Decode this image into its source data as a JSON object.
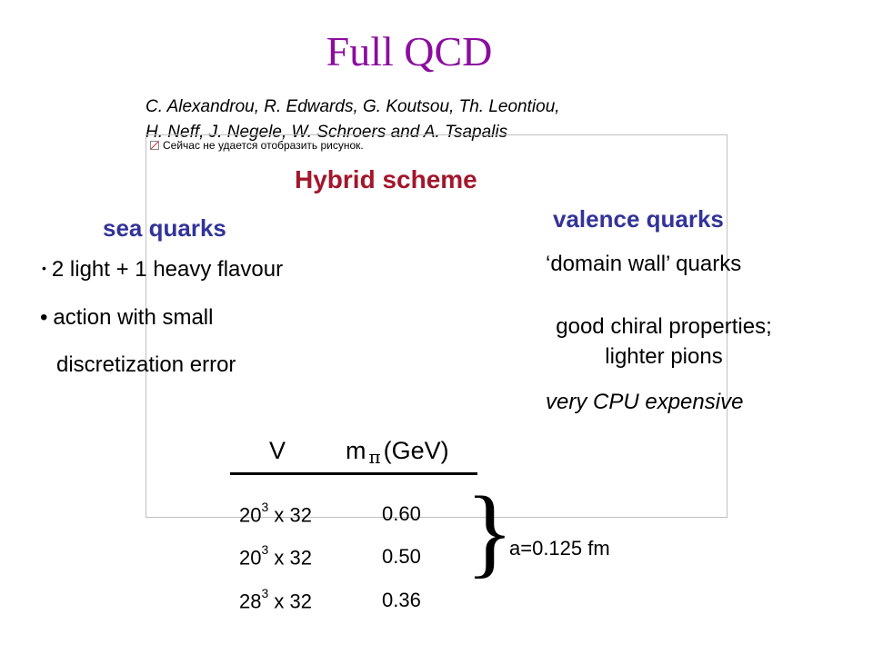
{
  "title": "Full QCD",
  "authors": [
    "C. Alexandrou, R. Edwards, G. Koutsou, Th. Leontiou,",
    "H. Neff, J. Negele, W. Schroers and A. Tsapalis"
  ],
  "image_placeholder": "Сейчас не удается отобразить рисунок.",
  "hybrid_title": "Hybrid scheme",
  "sea": {
    "heading": "sea quarks",
    "bullet1": "2 light + 1 heavy flavour",
    "bullet2": "action with small",
    "bullet2_cont": "discretization error"
  },
  "valence": {
    "heading": "valence quarks",
    "line1": "‘domain wall’ quarks",
    "line2a": "good chiral properties;",
    "line2b": "lighter pions",
    "line3": "very CPU expensive"
  },
  "table": {
    "header_v": "V",
    "header_m": "m",
    "header_m_sub": "π",
    "header_m_unit": "(GeV)",
    "rows": [
      {
        "base": "20",
        "exp": "3",
        "rest": " x 32",
        "mpi": "0.60"
      },
      {
        "base": "20",
        "exp": "3",
        "rest": " x 32",
        "mpi": "0.50"
      },
      {
        "base": "28",
        "exp": "3",
        "rest": " x 32",
        "mpi": "0.36"
      }
    ],
    "brace": "}",
    "spacing": "a=0.125 fm"
  }
}
